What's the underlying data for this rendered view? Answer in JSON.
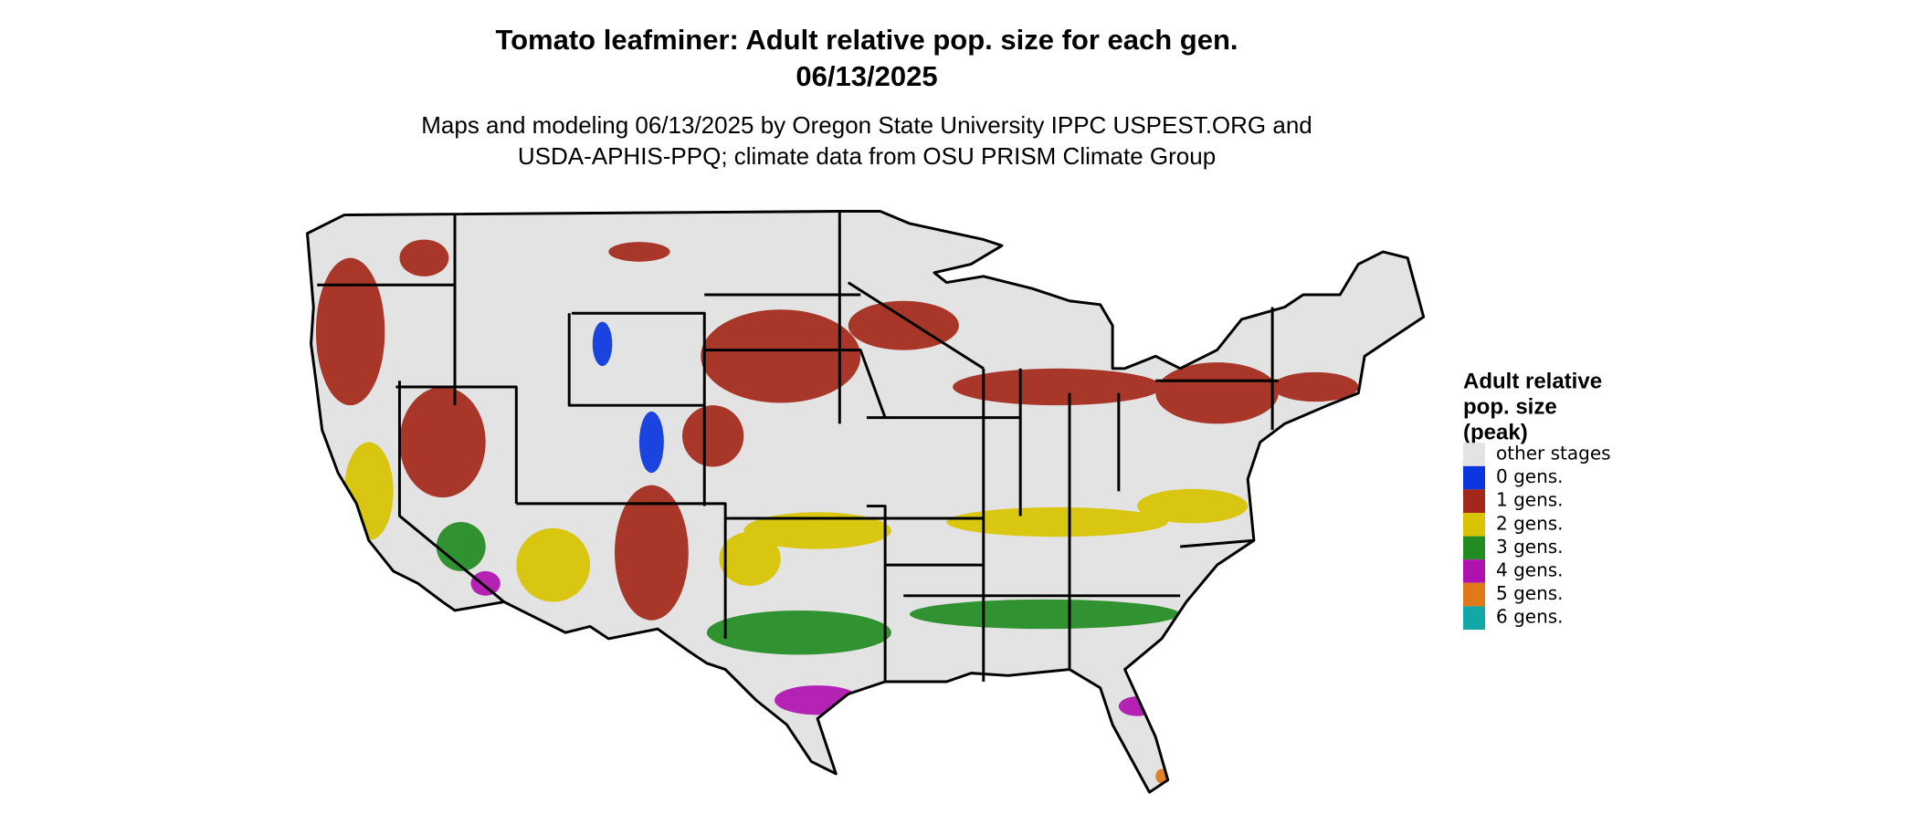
{
  "header": {
    "title": [
      "Tomato leafminer: Adult relative pop. size for each gen.",
      "06/13/2025"
    ],
    "subtitle": [
      "Maps and modeling 06/13/2025 by Oregon State University IPPC USPEST.ORG and",
      "USDA-APHIS-PPQ; climate data from OSU PRISM Climate Group"
    ]
  },
  "legend": {
    "title": [
      "Adult relative",
      "pop. size",
      "(peak)"
    ],
    "items": [
      {
        "label": "other stages",
        "color": "#e3e3e3"
      },
      {
        "label": "0 gens.",
        "color": "#0a36e0"
      },
      {
        "label": "1 gens.",
        "color": "#a3281a"
      },
      {
        "label": "2 gens.",
        "color": "#d8c400"
      },
      {
        "label": "3 gens.",
        "color": "#228b22"
      },
      {
        "label": "4 gens.",
        "color": "#b012b0"
      },
      {
        "label": "5 gens.",
        "color": "#e07a18"
      },
      {
        "label": "6 gens.",
        "color": "#12a8a8"
      }
    ]
  }
}
